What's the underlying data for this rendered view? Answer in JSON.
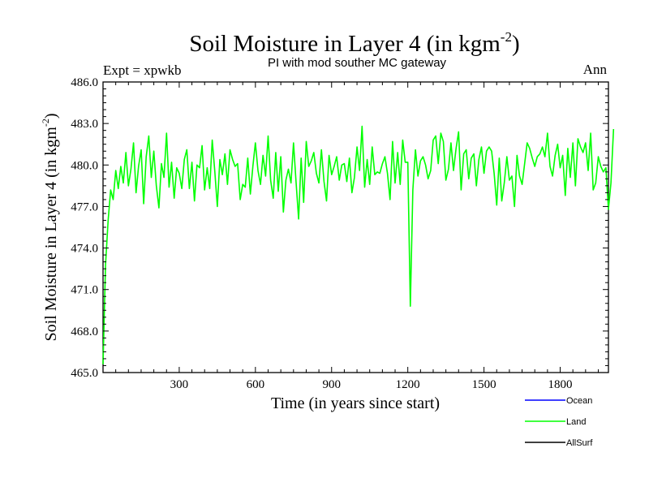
{
  "chart_data": {
    "type": "line",
    "title": "Soil Moisture in Layer 4 (in kgm",
    "title_sup": "-2",
    "title_close": ")",
    "subtitle": "PI with mod souther MC gateway",
    "left_label": "Expt = xpwkb",
    "right_label": "Ann",
    "xlabel": "Time (in years since start)",
    "ylabel": "Soil Moisture in Layer 4 (in kgm",
    "ylabel_sup": "-2",
    "ylabel_close": ")",
    "xlim": [
      0,
      1990
    ],
    "ylim": [
      465.0,
      486.0
    ],
    "xticks": [
      300,
      600,
      900,
      1200,
      1500,
      1800
    ],
    "xtick_labels": [
      "300",
      "600",
      "900",
      "1200",
      "1500",
      "1800"
    ],
    "yticks": [
      465.0,
      468.0,
      471.0,
      474.0,
      477.0,
      480.0,
      483.0,
      486.0
    ],
    "ytick_labels": [
      "465.0",
      "468.0",
      "471.0",
      "474.0",
      "477.0",
      "480.0",
      "483.0",
      "486.0"
    ],
    "legend": [
      {
        "name": "Ocean",
        "color": "#0000ff"
      },
      {
        "name": "Land",
        "color": "#00ff00"
      },
      {
        "name": "AllSurf",
        "color": "#000000"
      }
    ],
    "series": [
      {
        "name": "Land",
        "color": "#00ff00",
        "x_start": 0,
        "x_step": 10,
        "values": [
          465.6,
          472.8,
          476.0,
          478.2,
          477.5,
          479.6,
          478.3,
          479.9,
          478.7,
          480.9,
          478.5,
          479.7,
          481.6,
          478.0,
          479.9,
          481.1,
          477.2,
          480.6,
          482.1,
          479.1,
          481.0,
          478.5,
          476.9,
          480.1,
          479.1,
          482.3,
          478.4,
          480.2,
          477.6,
          479.8,
          479.4,
          478.3,
          480.4,
          481.1,
          478.3,
          480.2,
          477.4,
          480.0,
          479.8,
          481.4,
          478.2,
          479.8,
          478.3,
          481.8,
          479.6,
          477.0,
          480.4,
          479.3,
          480.8,
          478.6,
          481.1,
          480.4,
          479.9,
          480.1,
          477.5,
          478.6,
          478.4,
          480.5,
          477.9,
          479.9,
          481.6,
          479.6,
          478.6,
          480.7,
          479.2,
          482.1,
          478.9,
          477.6,
          480.9,
          478.1,
          480.6,
          476.6,
          478.9,
          479.7,
          478.7,
          481.6,
          478.8,
          476.1,
          480.5,
          477.3,
          481.7,
          479.9,
          480.3,
          480.9,
          479.4,
          478.7,
          481.1,
          478.8,
          477.4,
          480.7,
          479.3,
          479.9,
          480.6,
          478.9,
          480.0,
          480.1,
          478.8,
          480.5,
          478.0,
          479.1,
          481.3,
          479.6,
          482.8,
          478.4,
          480.4,
          478.6,
          481.3,
          479.3,
          479.5,
          479.4,
          480.1,
          480.6,
          479.4,
          477.5,
          481.7,
          478.7,
          480.9,
          478.6,
          481.8,
          480.2,
          480.2,
          469.8,
          478.2,
          481.1,
          479.2,
          480.3,
          480.6,
          480.0,
          479.0,
          479.6,
          481.8,
          482.1,
          480.1,
          482.3,
          481.7,
          478.9,
          479.7,
          481.6,
          479.6,
          481.2,
          482.4,
          478.2,
          480.8,
          481.1,
          479.0,
          480.5,
          480.8,
          478.5,
          480.4,
          481.3,
          479.4,
          481.0,
          481.3,
          481.0,
          479.4,
          477.1,
          480.5,
          477.4,
          478.7,
          480.6,
          478.9,
          479.2,
          477.0,
          480.7,
          479.2,
          478.6,
          480.1,
          481.6,
          481.2,
          480.5,
          479.9,
          480.6,
          480.8,
          481.3,
          480.6,
          482.3,
          479.9,
          479.2,
          480.7,
          481.5,
          479.8,
          480.7,
          477.8,
          481.2,
          479.1,
          481.6,
          478.5,
          481.9,
          481.3,
          480.9,
          481.6,
          479.6,
          482.3,
          478.2,
          478.7,
          480.6,
          479.9,
          479.5,
          479.8,
          476.8,
          478.7,
          482.6
        ]
      }
    ]
  }
}
